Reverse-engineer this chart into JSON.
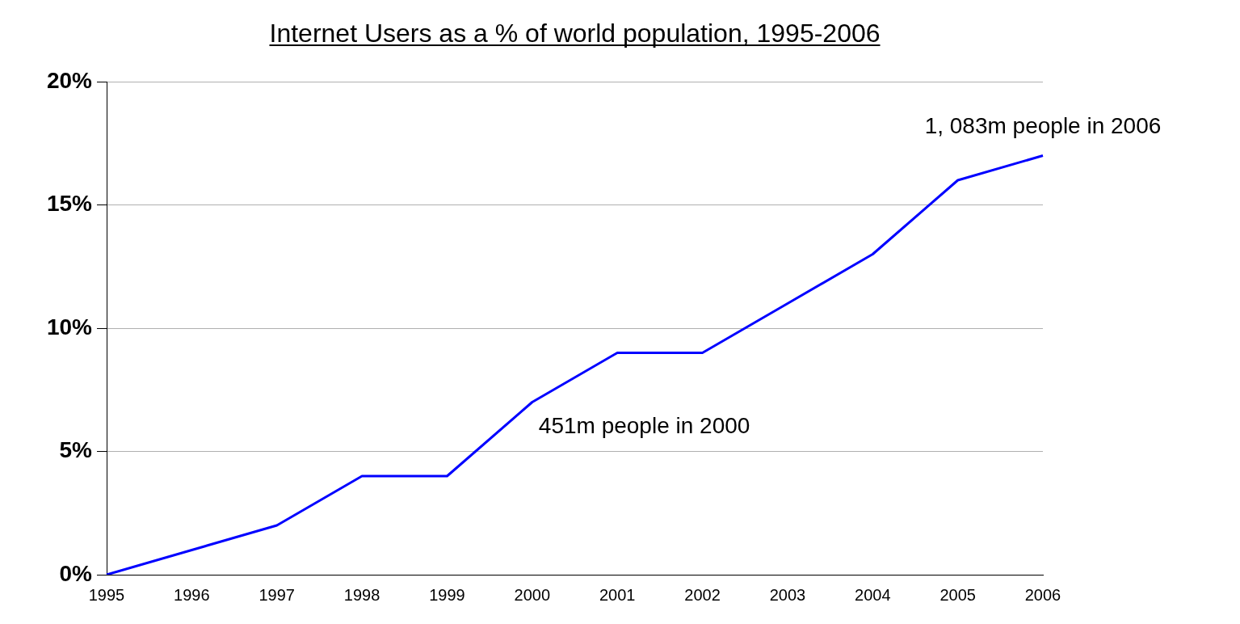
{
  "chart_data": {
    "type": "line",
    "title": "Internet Users as a % of world population, 1995-2006",
    "categories": [
      "1995",
      "1996",
      "1997",
      "1998",
      "1999",
      "2000",
      "2001",
      "2002",
      "2003",
      "2004",
      "2005",
      "2006"
    ],
    "series": [
      {
        "color": "#0000ff",
        "values": [
          0,
          1,
          2,
          4,
          4,
          7,
          9,
          9,
          11,
          13,
          16,
          17
        ]
      }
    ],
    "ylim": [
      0,
      20
    ],
    "yticks": [
      {
        "value": 0,
        "label": "0%"
      },
      {
        "value": 5,
        "label": "5%"
      },
      {
        "value": 10,
        "label": "10%"
      },
      {
        "value": 15,
        "label": "15%"
      },
      {
        "value": 20,
        "label": "20%"
      }
    ],
    "grid": "y",
    "legend": false,
    "marker": "none",
    "line_style": "solid",
    "annotations": [
      {
        "text": "451m people in 2000",
        "x": "2000",
        "y": 7
      },
      {
        "text": "1, 083m people in 2006",
        "x": "2006",
        "y": 17
      }
    ]
  }
}
